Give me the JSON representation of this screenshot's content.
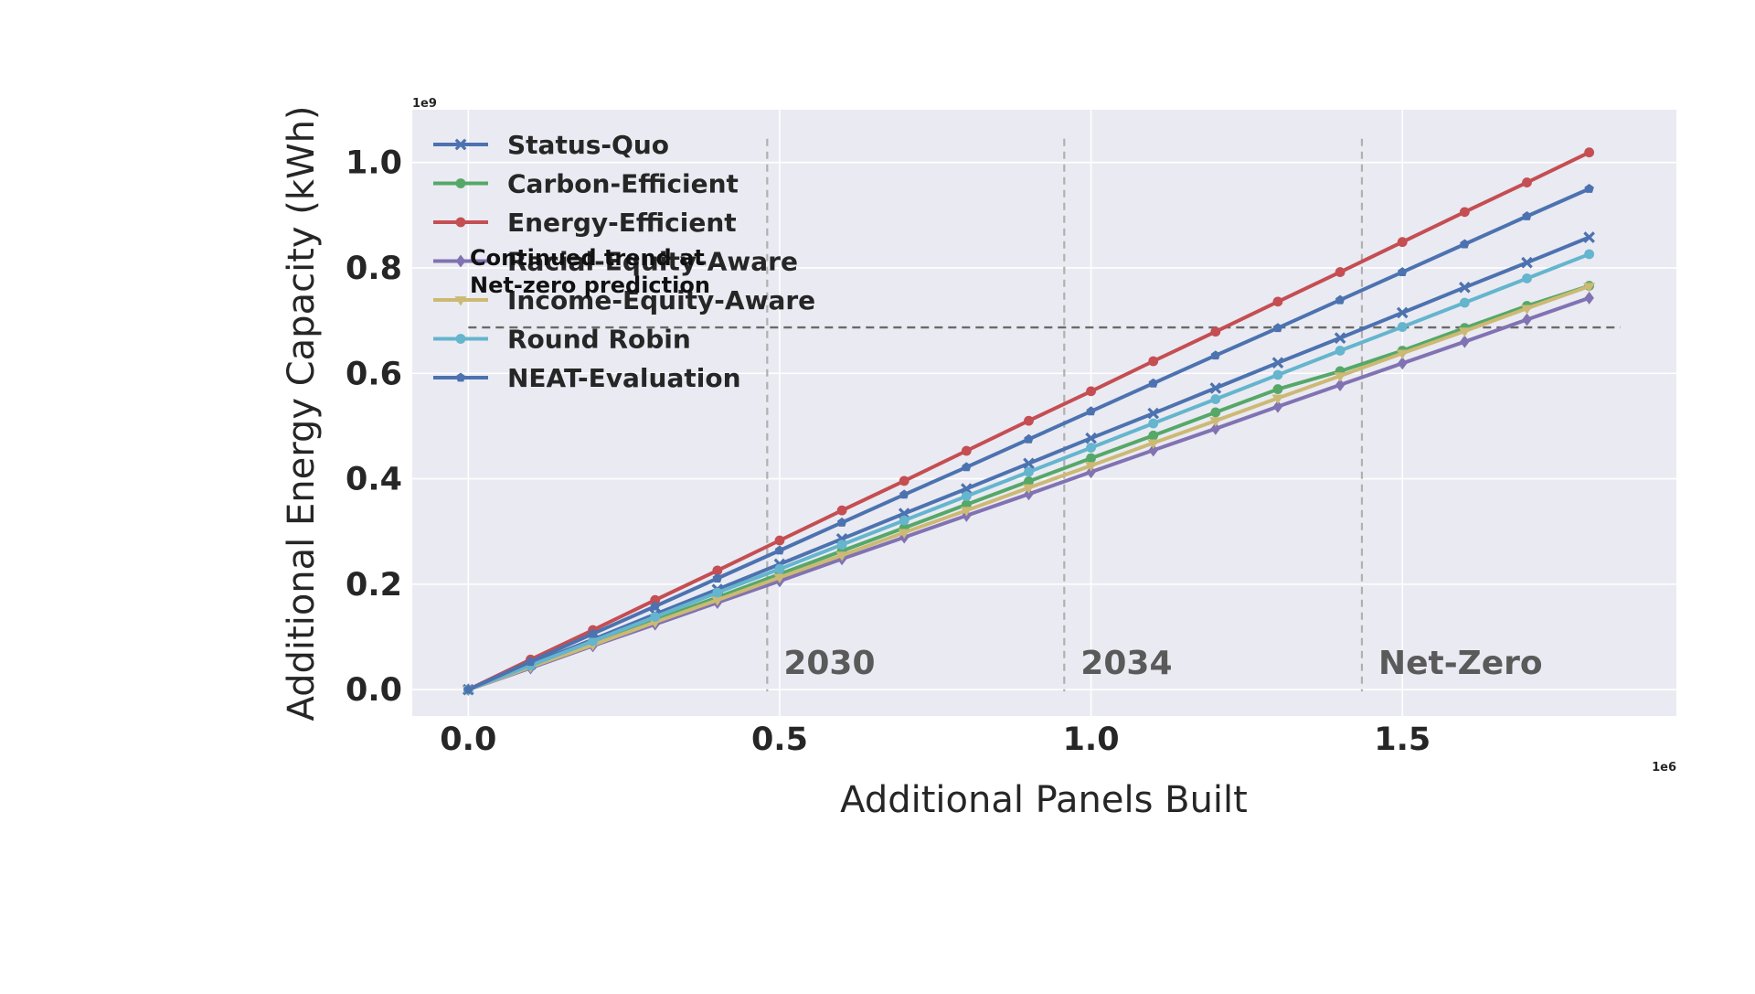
{
  "chart_data": {
    "type": "line",
    "title": "",
    "xlabel": "Additional Panels Built",
    "ylabel": "Additional Energy Capacity (kWh)",
    "x_offset_label": "1e6",
    "y_offset_label": "1e9",
    "xlim": [
      -0.09,
      1.94
    ],
    "ylim": [
      -0.05,
      1.1
    ],
    "xticks": [
      0.0,
      0.5,
      1.0,
      1.5
    ],
    "xtick_labels": [
      "0.0",
      "0.5",
      "1.0",
      "1.5"
    ],
    "yticks": [
      0.0,
      0.2,
      0.4,
      0.6,
      0.8,
      1.0
    ],
    "ytick_labels": [
      "0.0",
      "0.2",
      "0.4",
      "0.6",
      "0.8",
      "1.0"
    ],
    "grid": true,
    "legend_position": "top-left",
    "x": [
      0.0,
      0.1,
      0.2,
      0.3,
      0.4,
      0.5,
      0.6,
      0.7,
      0.8,
      0.9,
      1.0,
      1.1,
      1.2,
      1.3,
      1.4,
      1.5,
      1.6,
      1.7,
      1.8
    ],
    "series": [
      {
        "name": "Status-Quo",
        "color": "#4c72b0",
        "marker": "x",
        "values": [
          0.0,
          0.048,
          0.095,
          0.143,
          0.19,
          0.238,
          0.286,
          0.334,
          0.381,
          0.429,
          0.477,
          0.524,
          0.572,
          0.62,
          0.667,
          0.715,
          0.763,
          0.81,
          0.858
        ]
      },
      {
        "name": "Carbon-Efficient",
        "color": "#55a868",
        "marker": "circle",
        "values": [
          0.0,
          0.044,
          0.088,
          0.132,
          0.175,
          0.219,
          0.263,
          0.307,
          0.351,
          0.395,
          0.439,
          0.482,
          0.526,
          0.57,
          0.604,
          0.643,
          0.686,
          0.728,
          0.766
        ]
      },
      {
        "name": "Energy-Efficient",
        "color": "#c44e52",
        "marker": "circle",
        "values": [
          0.0,
          0.057,
          0.113,
          0.17,
          0.226,
          0.283,
          0.34,
          0.396,
          0.453,
          0.51,
          0.566,
          0.623,
          0.679,
          0.736,
          0.792,
          0.849,
          0.906,
          0.962,
          1.019
        ]
      },
      {
        "name": "Racial-Equity-Aware",
        "color": "#8172b3",
        "marker": "diamond",
        "values": [
          0.0,
          0.041,
          0.083,
          0.124,
          0.165,
          0.206,
          0.248,
          0.289,
          0.33,
          0.371,
          0.413,
          0.454,
          0.495,
          0.537,
          0.578,
          0.619,
          0.66,
          0.702,
          0.743
        ]
      },
      {
        "name": "Income-Equity-Aware",
        "color": "#ccb974",
        "marker": "triangle-down",
        "values": [
          0.0,
          0.043,
          0.085,
          0.128,
          0.17,
          0.213,
          0.255,
          0.298,
          0.34,
          0.383,
          0.425,
          0.468,
          0.51,
          0.553,
          0.595,
          0.638,
          0.68,
          0.723,
          0.765
        ]
      },
      {
        "name": "Round Robin",
        "color": "#64b5cd",
        "marker": "circle",
        "values": [
          0.0,
          0.046,
          0.092,
          0.138,
          0.184,
          0.229,
          0.275,
          0.321,
          0.367,
          0.413,
          0.459,
          0.505,
          0.551,
          0.597,
          0.643,
          0.688,
          0.734,
          0.78,
          0.826
        ]
      },
      {
        "name": "NEAT-Evaluation",
        "color": "#4c72b0",
        "marker": "pentagon",
        "values": [
          0.0,
          0.053,
          0.106,
          0.158,
          0.211,
          0.264,
          0.317,
          0.37,
          0.422,
          0.475,
          0.528,
          0.581,
          0.634,
          0.686,
          0.739,
          0.792,
          0.845,
          0.898,
          0.95
        ]
      }
    ],
    "hline": {
      "y": 0.687,
      "x_start": 0.0,
      "x_end": 1.85,
      "label": "Continued trend at Net-zero prediction",
      "label_lines": [
        "Continued trend at",
        "Net-zero prediction"
      ]
    },
    "vlines": [
      {
        "x": 0.48,
        "label": "2030"
      },
      {
        "x": 0.957,
        "label": "2034"
      },
      {
        "x": 1.435,
        "label": "Net-Zero"
      }
    ],
    "vline_top": 1.045,
    "vline_label_y": 0.03
  }
}
